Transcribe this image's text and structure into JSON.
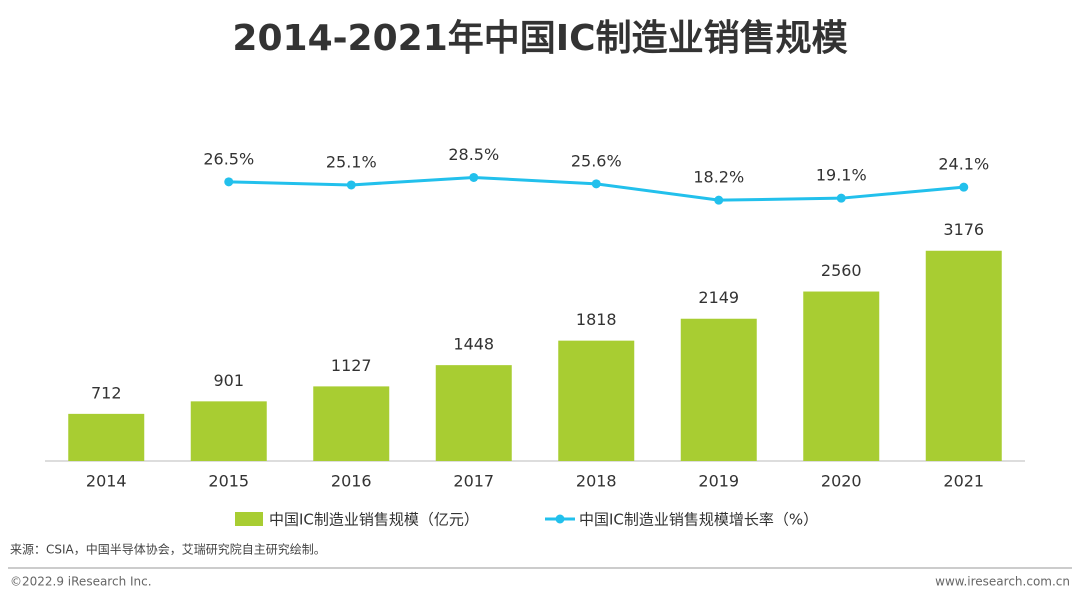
{
  "chart_data": {
    "type": "bar_line",
    "title": "2014-2021年中国IC制造业销售规模",
    "categories": [
      "2014",
      "2015",
      "2016",
      "2017",
      "2018",
      "2019",
      "2020",
      "2021"
    ],
    "series": [
      {
        "name": "中国IC制造业销售规模（亿元）",
        "color": "#a8cd32",
        "type": "bar",
        "values": [
          712,
          901,
          1127,
          1448,
          1818,
          2149,
          2560,
          3176
        ]
      },
      {
        "name": "中国IC制造业销售规模增长率（%）",
        "color": "#22c0ec",
        "type": "line",
        "axis": "y2",
        "values": [
          null,
          26.5,
          25.1,
          28.5,
          25.6,
          18.2,
          19.1,
          24.1
        ],
        "value_labels": [
          null,
          "26.5%",
          "25.1%",
          "28.5%",
          "25.6%",
          "18.2%",
          "19.1%",
          "24.1%"
        ]
      }
    ],
    "ylim": [
      0,
      5000
    ],
    "y2lim": [
      -100,
      50
    ],
    "source": "来源：CSIA，中国半导体协会，艾瑞研究院自主研究绘制。",
    "copyright": "©2022.9 iResearch Inc.",
    "website": "www.iresearch.com.cn"
  }
}
